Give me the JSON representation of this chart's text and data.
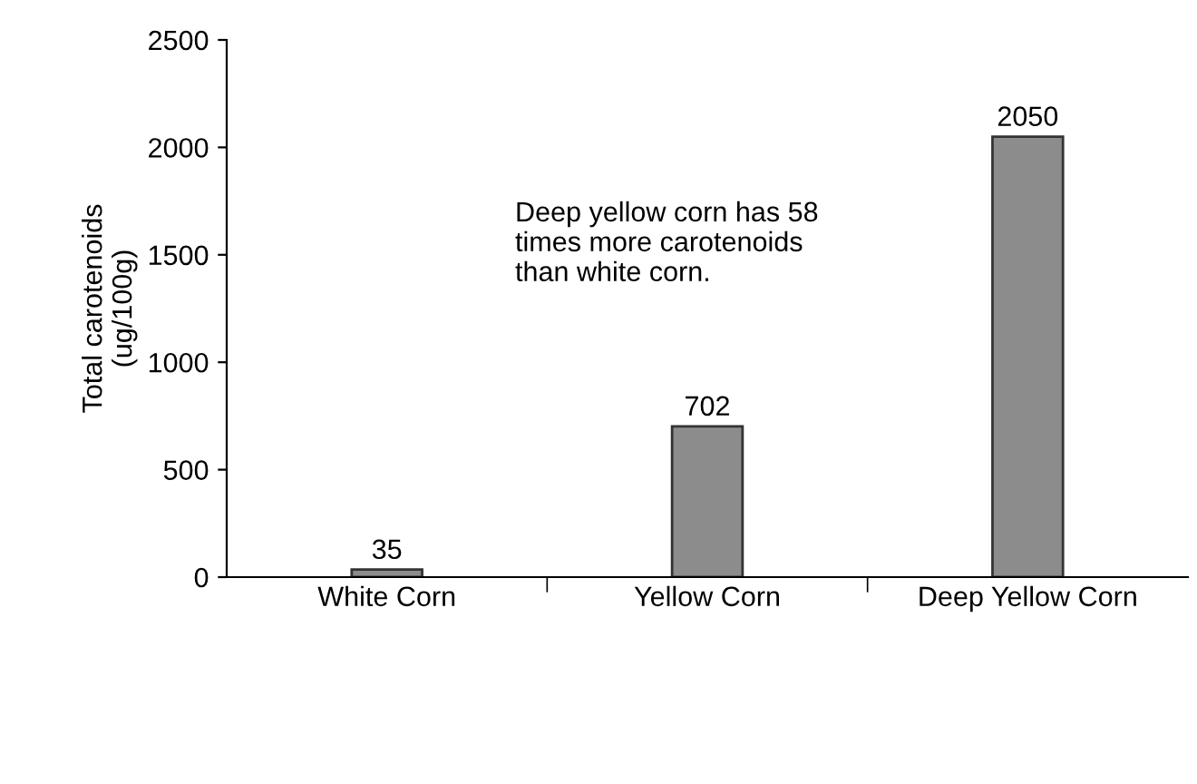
{
  "chart_data": {
    "type": "bar",
    "ylabel": "Total carotenoids\n(ug/100g)",
    "categories": [
      "White Corn",
      "Yellow Corn",
      "Deep Yellow Corn"
    ],
    "values": [
      35,
      702,
      2050
    ],
    "color": "#8c8c8c",
    "ylim": [
      0,
      2500
    ],
    "yticks": [
      0,
      500,
      1000,
      1500,
      2000,
      2500
    ],
    "data_labels": true,
    "grid": false,
    "legend": false,
    "annotations": [
      "Deep yellow corn has 58\ntimes more carotenoids\nthan white corn."
    ]
  }
}
